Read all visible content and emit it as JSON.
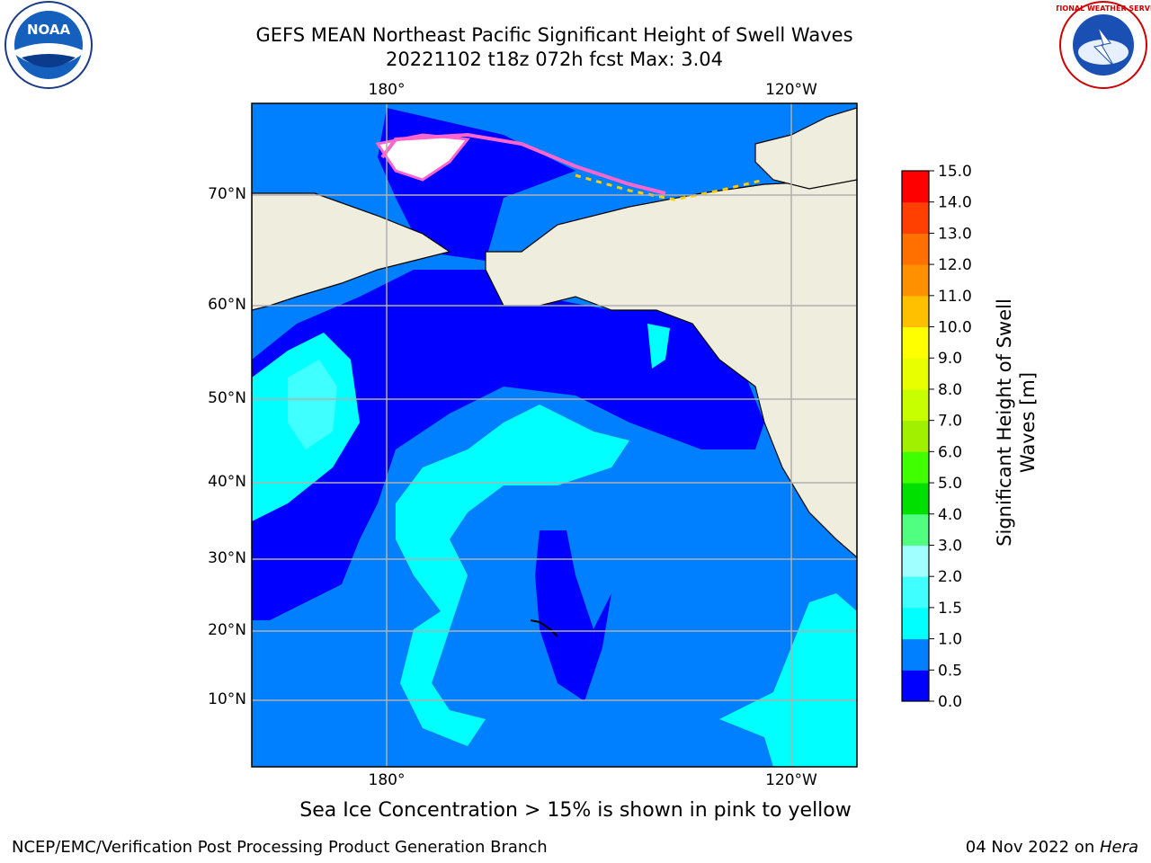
{
  "header": {
    "title": "GEFS MEAN Northeast Pacific Significant Height of Swell Waves",
    "subtitle": "20221102 t18z 072h fcst   Max: 3.04"
  },
  "logos": {
    "left": {
      "name": "noaa-logo",
      "text": "NOAA"
    },
    "right": {
      "name": "nws-logo",
      "text": "NATIONAL WEATHER SERVICE"
    }
  },
  "map": {
    "lon_labels": [
      "180°",
      "120°W"
    ],
    "lat_labels": [
      "70°N",
      "60°N",
      "50°N",
      "40°N",
      "30°N",
      "20°N",
      "10°N"
    ],
    "colors": {
      "land": "#efedde",
      "ocean_low": "#0000ff",
      "ocean_mid": "#0080ff",
      "ocean_high": "#00ffff",
      "ice_edge": "#ff66cc",
      "grid": "#b0b0b0"
    }
  },
  "colorbar": {
    "label": "Significant Height of Swell Waves [m]",
    "ticks": [
      "0.0",
      "0.5",
      "1.0",
      "1.5",
      "2.0",
      "3.0",
      "4.0",
      "5.0",
      "6.0",
      "7.0",
      "8.0",
      "9.0",
      "10.0",
      "11.0",
      "12.0",
      "13.0",
      "14.0",
      "15.0"
    ],
    "colors": [
      "#0000ff",
      "#0080ff",
      "#00ffff",
      "#40ffff",
      "#a0ffff",
      "#50ff80",
      "#00e000",
      "#40ff00",
      "#a0f000",
      "#c8ff00",
      "#e8ff00",
      "#ffff00",
      "#ffc000",
      "#ff9000",
      "#ff7000",
      "#ff4000",
      "#ff0000"
    ]
  },
  "note": "Sea Ice Concentration > 15% is shown in pink to yellow",
  "footer": {
    "left": "NCEP/EMC/Verification Post Processing Product Generation Branch",
    "right_date": "04 Nov 2022 on ",
    "right_host": "Hera"
  }
}
